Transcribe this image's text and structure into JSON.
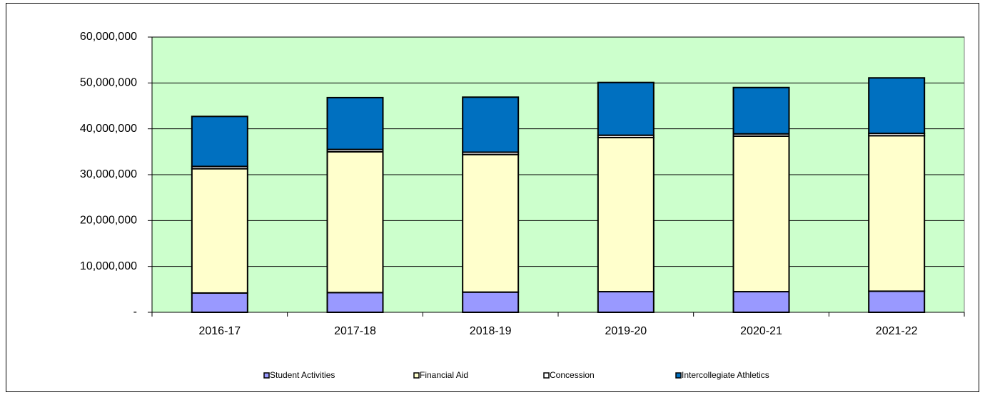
{
  "chart_data": {
    "type": "stacked_bar",
    "categories": [
      "2016-17",
      "2017-18",
      "2018-19",
      "2019-20",
      "2020-21",
      "2021-22"
    ],
    "series": [
      {
        "name": "Student Activities",
        "color": "#9999ff",
        "values": [
          4200000,
          4300000,
          4400000,
          4500000,
          4500000,
          4600000
        ]
      },
      {
        "name": "Financial Aid",
        "color": "#ffffcc",
        "values": [
          27100000,
          30700000,
          30000000,
          33600000,
          33900000,
          33900000
        ]
      },
      {
        "name": "Concession",
        "color": "#ffffff",
        "values": [
          500000,
          500000,
          500000,
          500000,
          500000,
          500000
        ]
      },
      {
        "name": "Intercollegiate Athletics",
        "color": "#0070c0",
        "values": [
          10900000,
          11300000,
          12000000,
          11500000,
          10100000,
          12100000
        ]
      }
    ],
    "ylim": [
      0,
      60000000
    ],
    "yticks": [
      {
        "value": 0,
        "label": "-"
      },
      {
        "value": 10000000,
        "label": "10,000,000"
      },
      {
        "value": 20000000,
        "label": "20,000,000"
      },
      {
        "value": 30000000,
        "label": "30,000,000"
      },
      {
        "value": 40000000,
        "label": "40,000,000"
      },
      {
        "value": 50000000,
        "label": "50,000,000"
      },
      {
        "value": 60000000,
        "label": "60,000,000"
      }
    ],
    "grid": true,
    "plot_background": "#ccffcc",
    "legend": "bottom"
  }
}
